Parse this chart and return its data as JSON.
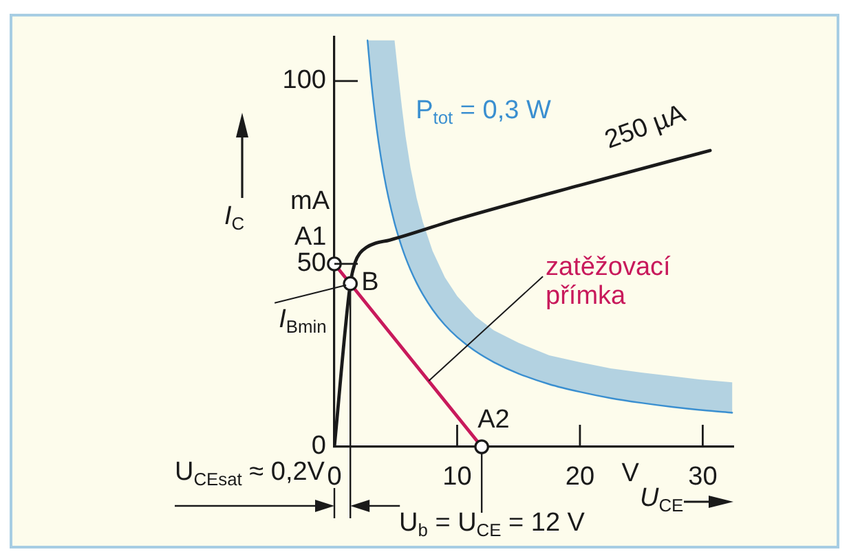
{
  "chart_data": {
    "type": "line",
    "xlabel": "U$_{CE}$",
    "ylabel": "I$_{C}$",
    "xlim": [
      0,
      32.5
    ],
    "ylim": [
      0,
      112
    ],
    "xticks": [
      0,
      10,
      20,
      30
    ],
    "yticks": [
      0,
      50,
      100
    ],
    "marker": "none",
    "series": [
      {
        "name": "P$_{tot}$ = 0,3 W",
        "color": "#3a8fd0",
        "x": [
          2.7,
          3,
          3.3,
          3.6,
          4,
          4.4,
          4.9,
          5.2,
          5.5,
          5.8,
          6.2,
          6.7,
          7.2,
          8,
          9,
          10,
          11.5,
          13,
          15,
          17.5,
          20,
          22.5,
          25,
          27.5,
          30,
          32.4
        ],
        "values": [
          111.1,
          100,
          90.9,
          83.3,
          75,
          68.2,
          61.2,
          57.7,
          54.5,
          51.7,
          48.4,
          44.8,
          41.7,
          37.5,
          33.3,
          30,
          26.1,
          23.1,
          20,
          17.1,
          15,
          13.3,
          12,
          10.9,
          10,
          9.3
        ],
        "lower": [
          111.1,
          100,
          90.9,
          83.3,
          75,
          68.2,
          61.2,
          57.7,
          54.5,
          51.7,
          48.4,
          44.8,
          41.7,
          37.5,
          33.3,
          30,
          26.1,
          23.1,
          20,
          17.1,
          15,
          13.3,
          12,
          10.9,
          10,
          9.3
        ],
        "upper": [
          111.1,
          111.1,
          111.1,
          111.1,
          111.1,
          111.1,
          111.1,
          101.7,
          92.8,
          84.8,
          76.3,
          68,
          61.5,
          53.5,
          46.3,
          41.2,
          35.6,
          31.8,
          28.4,
          25,
          23.1,
          21.4,
          20.3,
          19.3,
          18.3,
          17.6
        ]
      },
      {
        "name": "250 µA",
        "color": "#1a1a1a",
        "x": [
          0,
          1.3,
          1.7,
          2.1,
          2.6,
          3.3,
          4.5,
          10,
          20,
          30.6
        ],
        "values": [
          0,
          44.6,
          50.5,
          53,
          54.5,
          55.6,
          56.5,
          62.2,
          71.5,
          81
        ]
      },
      {
        "name": "zatěžovací přímka",
        "color": "#c8195b",
        "x": [
          0,
          12
        ],
        "values": [
          50,
          0
        ]
      },
      {
        "type": "scatter",
        "marker": "circle",
        "color": "#1a1a1a",
        "x": [
          0,
          1.3,
          12
        ],
        "values": [
          50,
          44.6,
          0
        ]
      }
    ],
    "annotations": [
      {
        "text": "A1",
        "x": 0,
        "y": 50
      },
      {
        "text": "B",
        "x": 1.3,
        "y": 44.6
      },
      {
        "text": "A2",
        "x": 12,
        "y": 0
      },
      {
        "text": "I$_{Bmin}$",
        "x": 1.3,
        "y": 44.6
      },
      "U$_{CEsat}$ ≈ 0,2V",
      "U$_{b}$ = U$_{CE}$ = 12 V",
      "mA",
      "V"
    ]
  }
}
